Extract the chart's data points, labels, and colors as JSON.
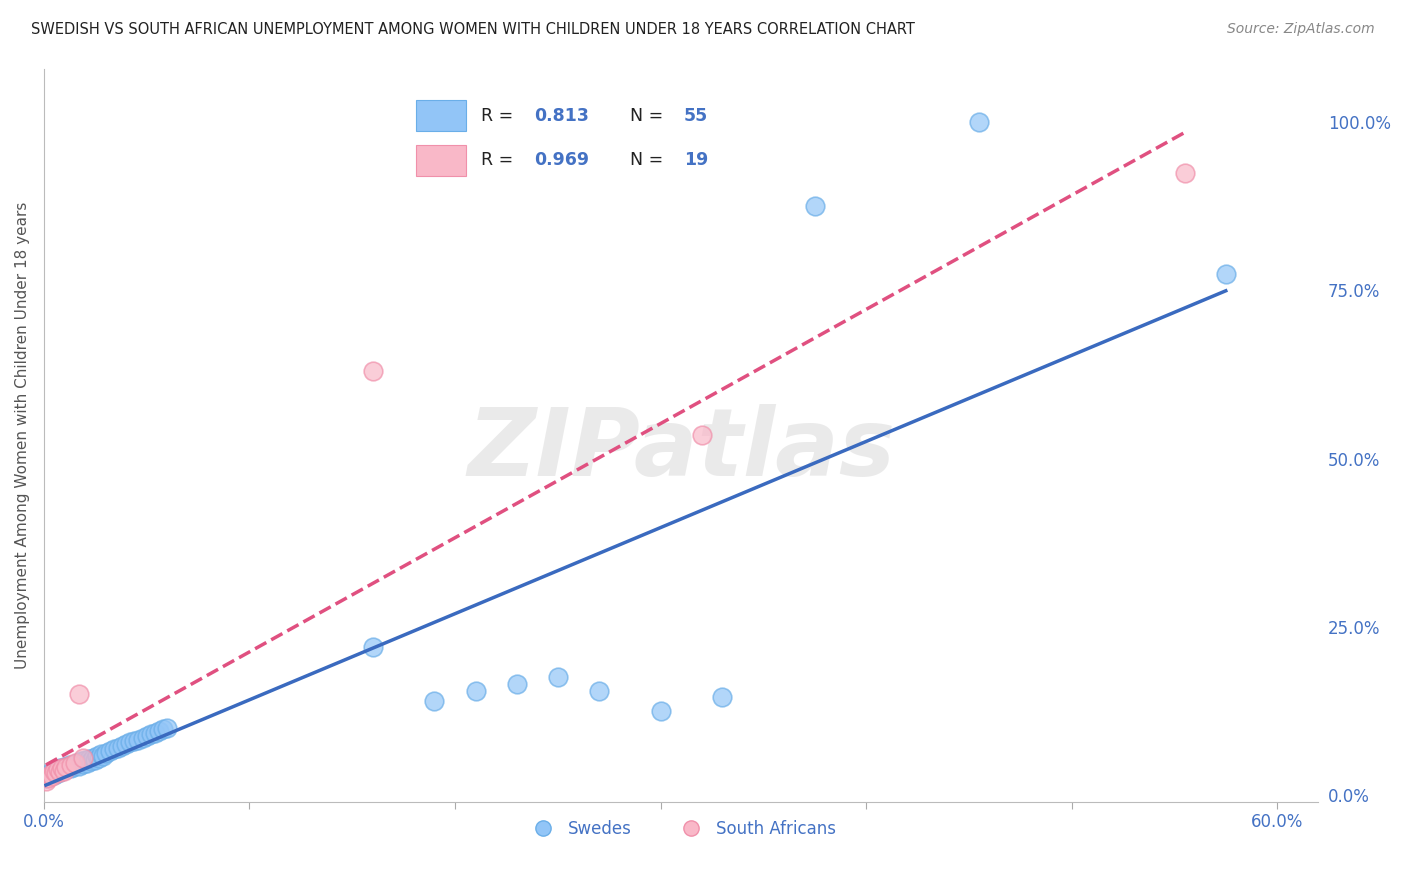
{
  "title": "SWEDISH VS SOUTH AFRICAN UNEMPLOYMENT AMONG WOMEN WITH CHILDREN UNDER 18 YEARS CORRELATION CHART",
  "source": "Source: ZipAtlas.com",
  "xlim": [
    0.0,
    0.62
  ],
  "ylim": [
    -0.01,
    1.08
  ],
  "ylabel": "Unemployment Among Women with Children Under 18 years",
  "legend_swedes_label": "Swedes",
  "legend_sa_label": "South Africans",
  "swedes_color": "#92c5f7",
  "sa_color": "#f9b8c8",
  "swedes_edge_color": "#6aaee8",
  "sa_edge_color": "#f090aa",
  "swedes_line_color": "#3a6abf",
  "sa_line_color": "#e05080",
  "watermark": "ZIPatlas",
  "background_color": "#ffffff",
  "grid_color": "#d0d0d0",
  "title_color": "#222222",
  "tick_label_color": "#4472c4",
  "ylabel_color": "#555555",
  "source_color": "#888888",
  "legend_text_color": "#222222",
  "legend_value_color": "#4472c4",
  "swedes_x": [
    0.001,
    0.002,
    0.003,
    0.004,
    0.005,
    0.006,
    0.007,
    0.008,
    0.009,
    0.01,
    0.011,
    0.012,
    0.013,
    0.014,
    0.015,
    0.016,
    0.017,
    0.018,
    0.019,
    0.02,
    0.021,
    0.022,
    0.023,
    0.024,
    0.025,
    0.026,
    0.027,
    0.028,
    0.029,
    0.03,
    0.032,
    0.034,
    0.036,
    0.038,
    0.04,
    0.042,
    0.044,
    0.046,
    0.048,
    0.05,
    0.052,
    0.054,
    0.056,
    0.058,
    0.06,
    0.16,
    0.19,
    0.21,
    0.23,
    0.25,
    0.27,
    0.3,
    0.33,
    0.375,
    0.455,
    0.575
  ],
  "swedes_y": [
    0.025,
    0.03,
    0.028,
    0.035,
    0.03,
    0.038,
    0.032,
    0.04,
    0.035,
    0.042,
    0.038,
    0.045,
    0.04,
    0.042,
    0.045,
    0.048,
    0.043,
    0.05,
    0.046,
    0.052,
    0.048,
    0.054,
    0.05,
    0.055,
    0.052,
    0.058,
    0.055,
    0.06,
    0.058,
    0.062,
    0.065,
    0.068,
    0.07,
    0.072,
    0.075,
    0.078,
    0.08,
    0.082,
    0.085,
    0.088,
    0.09,
    0.092,
    0.095,
    0.098,
    0.1,
    0.22,
    0.14,
    0.155,
    0.165,
    0.175,
    0.155,
    0.125,
    0.145,
    0.875,
    1.0,
    0.775
  ],
  "sa_x": [
    0.001,
    0.002,
    0.003,
    0.004,
    0.005,
    0.006,
    0.007,
    0.008,
    0.009,
    0.01,
    0.011,
    0.013,
    0.015,
    0.017,
    0.019,
    0.16,
    0.32,
    0.555
  ],
  "sa_y": [
    0.02,
    0.025,
    0.03,
    0.028,
    0.035,
    0.032,
    0.038,
    0.034,
    0.04,
    0.036,
    0.042,
    0.045,
    0.048,
    0.15,
    0.055,
    0.63,
    0.535,
    0.925
  ],
  "x_ticks": [
    0.0,
    0.1,
    0.2,
    0.3,
    0.4,
    0.5,
    0.6
  ],
  "x_tick_labels": [
    "0.0%",
    "",
    "",
    "",
    "",
    "",
    "60.0%"
  ],
  "y_ticks_right": [
    0.0,
    0.25,
    0.5,
    0.75,
    1.0
  ],
  "y_tick_labels_right": [
    "0.0%",
    "25.0%",
    "50.0%",
    "75.0%",
    "100.0%"
  ]
}
